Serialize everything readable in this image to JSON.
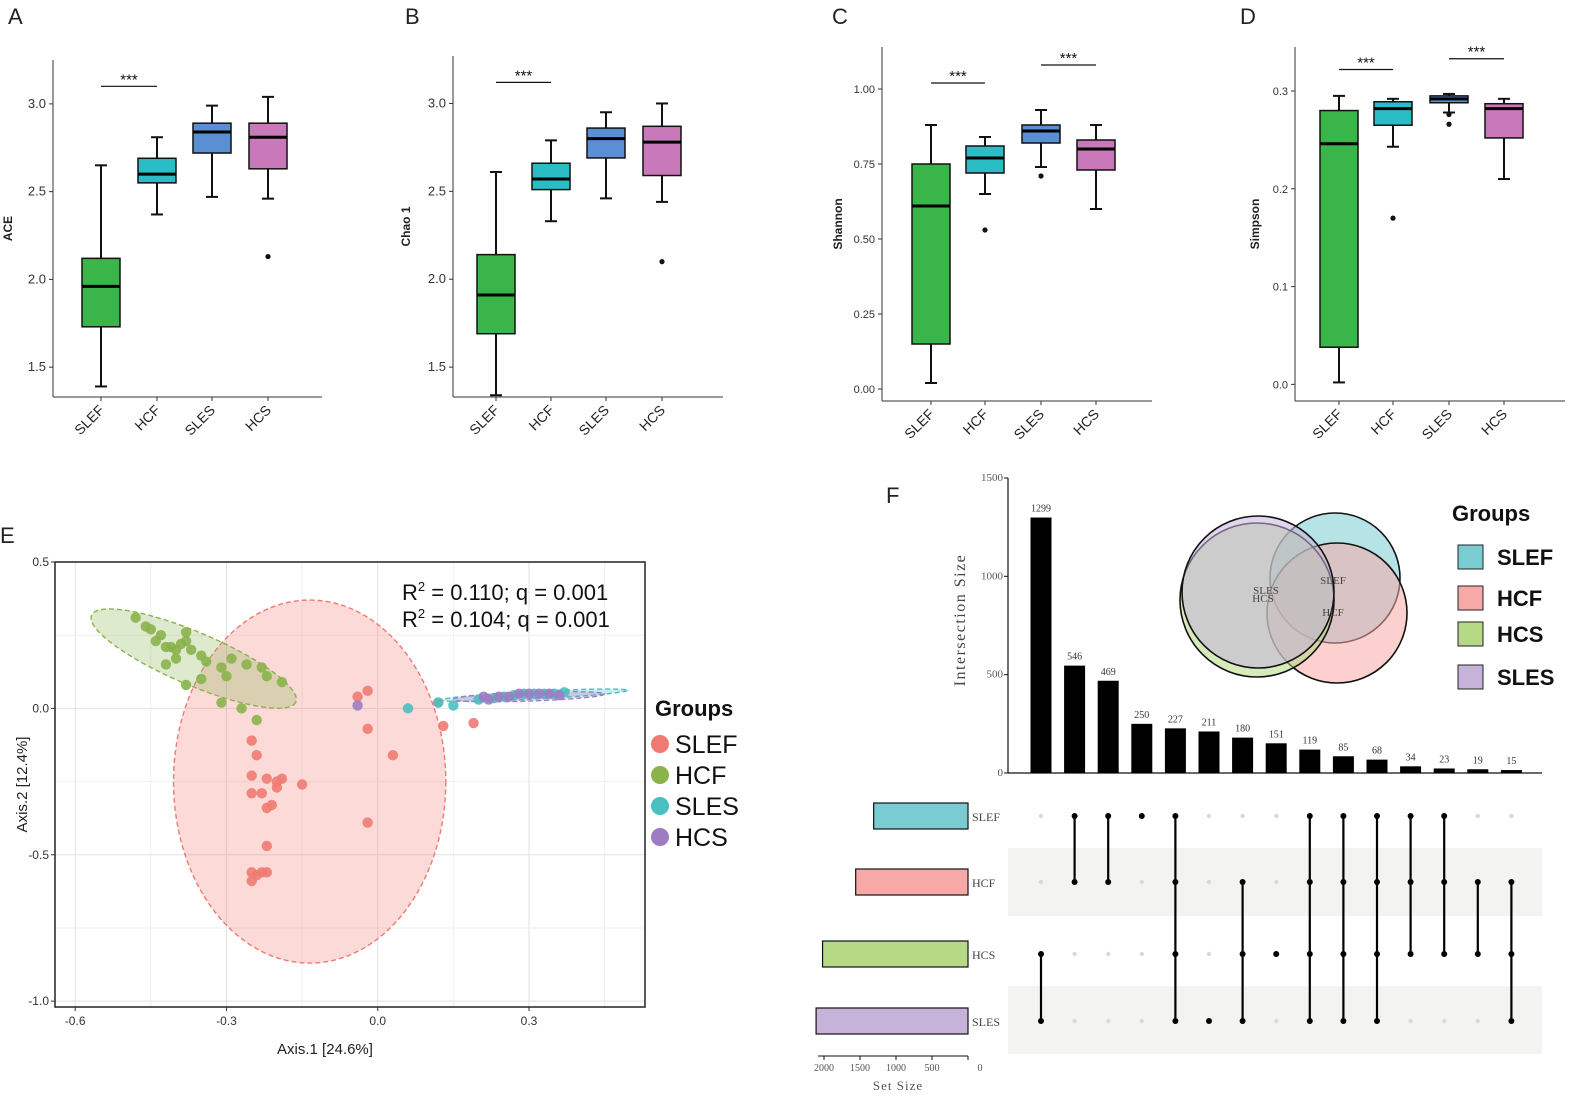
{
  "chart_data": {
    "panels": [
      {
        "type": "box",
        "label": "A",
        "ylabel": "ACE",
        "ylim": [
          1.33,
          3.25
        ],
        "yticks": [
          "1.5",
          "2.0",
          "2.5",
          "3.0"
        ],
        "categories": [
          "SLEF",
          "HCF",
          "SLES",
          "HCS"
        ],
        "boxes": [
          {
            "group": "SLEF",
            "color": "#3ab54a",
            "min": 1.39,
            "q1": 1.73,
            "median": 1.96,
            "q3": 2.12,
            "max": 2.65,
            "outliers": []
          },
          {
            "group": "HCF",
            "color": "#2bbdc6",
            "min": 2.37,
            "q1": 2.55,
            "median": 2.6,
            "q3": 2.69,
            "max": 2.81,
            "outliers": []
          },
          {
            "group": "SLES",
            "color": "#5b8fd3",
            "min": 2.47,
            "q1": 2.72,
            "median": 2.84,
            "q3": 2.89,
            "max": 2.99,
            "outliers": []
          },
          {
            "group": "HCS",
            "color": "#c978b9",
            "min": 2.46,
            "q1": 2.63,
            "median": 2.81,
            "q3": 2.89,
            "max": 3.04,
            "outliers": [
              2.13
            ]
          }
        ],
        "brackets": [
          {
            "from": "SLEF",
            "to": "HCF",
            "y": 3.1,
            "text": "***"
          }
        ]
      },
      {
        "type": "box",
        "label": "B",
        "ylabel": "Chao 1",
        "ylim": [
          1.33,
          3.27
        ],
        "yticks": [
          "1.5",
          "2.0",
          "2.5",
          "3.0"
        ],
        "categories": [
          "SLEF",
          "HCF",
          "SLES",
          "HCS"
        ],
        "boxes": [
          {
            "group": "SLEF",
            "color": "#3ab54a",
            "min": 1.34,
            "q1": 1.69,
            "median": 1.91,
            "q3": 2.14,
            "max": 2.61,
            "outliers": []
          },
          {
            "group": "HCF",
            "color": "#2bbdc6",
            "min": 2.33,
            "q1": 2.51,
            "median": 2.57,
            "q3": 2.66,
            "max": 2.79,
            "outliers": []
          },
          {
            "group": "SLES",
            "color": "#5b8fd3",
            "min": 2.46,
            "q1": 2.69,
            "median": 2.8,
            "q3": 2.86,
            "max": 2.95,
            "outliers": []
          },
          {
            "group": "HCS",
            "color": "#c978b9",
            "min": 2.44,
            "q1": 2.59,
            "median": 2.78,
            "q3": 2.87,
            "max": 3.0,
            "outliers": [
              2.1
            ]
          }
        ],
        "brackets": [
          {
            "from": "SLEF",
            "to": "HCF",
            "y": 3.12,
            "text": "***"
          }
        ]
      },
      {
        "type": "box",
        "label": "C",
        "ylabel": "Shannon",
        "ylim": [
          -0.04,
          1.14
        ],
        "yticks": [
          "0.00",
          "0.25",
          "0.50",
          "0.75",
          "1.00"
        ],
        "categories": [
          "SLEF",
          "HCF",
          "SLES",
          "HCS"
        ],
        "boxes": [
          {
            "group": "SLEF",
            "color": "#3ab54a",
            "min": 0.02,
            "q1": 0.15,
            "median": 0.61,
            "q3": 0.75,
            "max": 0.88,
            "outliers": []
          },
          {
            "group": "HCF",
            "color": "#2bbdc6",
            "min": 0.65,
            "q1": 0.72,
            "median": 0.77,
            "q3": 0.81,
            "max": 0.84,
            "outliers": [
              0.53
            ]
          },
          {
            "group": "SLES",
            "color": "#5b8fd3",
            "min": 0.74,
            "q1": 0.82,
            "median": 0.86,
            "q3": 0.88,
            "max": 0.93,
            "outliers": [
              0.71
            ]
          },
          {
            "group": "HCS",
            "color": "#c978b9",
            "min": 0.6,
            "q1": 0.73,
            "median": 0.8,
            "q3": 0.83,
            "max": 0.88,
            "outliers": []
          }
        ],
        "brackets": [
          {
            "from": "SLEF",
            "to": "HCF",
            "y": 1.02,
            "text": "***"
          },
          {
            "from": "SLES",
            "to": "HCS",
            "y": 1.08,
            "text": "***"
          }
        ]
      },
      {
        "type": "box",
        "label": "D",
        "ylabel": "Simpson",
        "ylim": [
          -0.017,
          0.345
        ],
        "yticks": [
          "0.0",
          "0.1",
          "0.2",
          "0.3"
        ],
        "categories": [
          "SLEF",
          "HCF",
          "SLES",
          "HCS"
        ],
        "boxes": [
          {
            "group": "SLEF",
            "color": "#3ab54a",
            "min": 0.002,
            "q1": 0.038,
            "median": 0.246,
            "q3": 0.28,
            "max": 0.295,
            "outliers": []
          },
          {
            "group": "HCF",
            "color": "#2bbdc6",
            "min": 0.243,
            "q1": 0.265,
            "median": 0.282,
            "q3": 0.289,
            "max": 0.292,
            "outliers": [
              0.17
            ]
          },
          {
            "group": "SLES",
            "color": "#5b8fd3",
            "min": 0.278,
            "q1": 0.288,
            "median": 0.292,
            "q3": 0.295,
            "max": 0.297,
            "outliers": [
              0.276,
              0.266
            ]
          },
          {
            "group": "HCS",
            "color": "#c978b9",
            "min": 0.21,
            "q1": 0.252,
            "median": 0.282,
            "q3": 0.287,
            "max": 0.292,
            "outliers": []
          }
        ],
        "brackets": [
          {
            "from": "SLEF",
            "to": "HCF",
            "y": 0.322,
            "text": "***"
          },
          {
            "from": "SLES",
            "to": "HCS",
            "y": 0.333,
            "text": "***"
          }
        ]
      },
      {
        "type": "scatter",
        "label": "E",
        "xlabel": "Axis.1   [24.6%]",
        "ylabel": "Axis.2   [12.4%]",
        "xlim": [
          -0.64,
          0.53
        ],
        "ylim": [
          -1.02,
          0.5
        ],
        "xticks": [
          -0.6,
          -0.3,
          0.0,
          0.3
        ],
        "xtick_labels": [
          "-0.6",
          "-0.3",
          "0.0",
          "0.3"
        ],
        "yticks": [
          0.5,
          0.0,
          -0.5,
          -1.0
        ],
        "ytick_labels": [
          "0.5",
          "0.0",
          "-0.5",
          "-1.0"
        ],
        "annotations": [
          {
            "pre": "R",
            "sup": "2",
            "post": " = 0.110; q = 0.001"
          },
          {
            "pre": "R",
            "sup": "2",
            "post": " = 0.104; q = 0.001"
          }
        ],
        "legend_title": "Groups",
        "series": [
          {
            "name": "SLEF",
            "color": "#f07a72",
            "ellipse": {
              "cx": -0.135,
              "cy": -0.25,
              "rx": 0.27,
              "ry": 0.62,
              "angle": 0
            },
            "points": [
              [
                -0.02,
                0.06
              ],
              [
                -0.04,
                0.04
              ],
              [
                -0.02,
                -0.07
              ],
              [
                0.12,
                0.02
              ],
              [
                0.13,
                -0.06
              ],
              [
                0.19,
                -0.05
              ],
              [
                0.03,
                -0.16
              ],
              [
                -0.25,
                -0.11
              ],
              [
                -0.24,
                -0.16
              ],
              [
                -0.25,
                -0.23
              ],
              [
                -0.22,
                -0.24
              ],
              [
                -0.2,
                -0.25
              ],
              [
                -0.19,
                -0.24
              ],
              [
                -0.15,
                -0.26
              ],
              [
                -0.2,
                -0.27
              ],
              [
                -0.25,
                -0.29
              ],
              [
                -0.23,
                -0.29
              ],
              [
                -0.22,
                -0.34
              ],
              [
                -0.21,
                -0.33
              ],
              [
                -0.22,
                -0.47
              ],
              [
                -0.25,
                -0.56
              ],
              [
                -0.24,
                -0.57
              ],
              [
                -0.23,
                -0.56
              ],
              [
                -0.22,
                -0.56
              ],
              [
                -0.25,
                -0.59
              ],
              [
                -0.02,
                -0.39
              ]
            ]
          },
          {
            "name": "HCF",
            "color": "#8ab34c",
            "ellipse": {
              "cx": -0.365,
              "cy": 0.17,
              "rx": 0.22,
              "ry": 0.09,
              "angle": 23
            },
            "points": [
              [
                -0.48,
                0.31
              ],
              [
                -0.46,
                0.28
              ],
              [
                -0.45,
                0.27
              ],
              [
                -0.43,
                0.25
              ],
              [
                -0.44,
                0.23
              ],
              [
                -0.42,
                0.21
              ],
              [
                -0.41,
                0.21
              ],
              [
                -0.4,
                0.2
              ],
              [
                -0.39,
                0.22
              ],
              [
                -0.38,
                0.23
              ],
              [
                -0.37,
                0.2
              ],
              [
                -0.4,
                0.17
              ],
              [
                -0.35,
                0.18
              ],
              [
                -0.34,
                0.16
              ],
              [
                -0.31,
                0.14
              ],
              [
                -0.29,
                0.17
              ],
              [
                -0.26,
                0.15
              ],
              [
                -0.23,
                0.14
              ],
              [
                -0.3,
                0.11
              ],
              [
                -0.22,
                0.11
              ],
              [
                -0.19,
                0.09
              ],
              [
                -0.35,
                0.1
              ],
              [
                -0.38,
                0.08
              ],
              [
                -0.31,
                0.02
              ],
              [
                -0.27,
                0.0
              ],
              [
                -0.24,
                -0.04
              ],
              [
                -0.42,
                0.15
              ],
              [
                -0.38,
                0.26
              ]
            ]
          },
          {
            "name": "SLES",
            "color": "#4bbfbf",
            "ellipse": {
              "cx": 0.31,
              "cy": 0.045,
              "rx": 0.185,
              "ry": 0.013,
              "angle": -3
            },
            "points": [
              [
                0.06,
                0.0
              ],
              [
                0.15,
                0.01
              ],
              [
                0.2,
                0.03
              ],
              [
                0.23,
                0.035
              ],
              [
                0.25,
                0.04
              ],
              [
                0.27,
                0.045
              ],
              [
                0.29,
                0.05
              ],
              [
                0.31,
                0.05
              ],
              [
                0.33,
                0.05
              ],
              [
                0.35,
                0.05
              ],
              [
                0.37,
                0.055
              ],
              [
                0.12,
                0.02
              ]
            ]
          },
          {
            "name": "HCS",
            "color": "#9c7dc3",
            "ellipse": {
              "cx": 0.3,
              "cy": 0.04,
              "rx": 0.15,
              "ry": 0.015,
              "angle": -2
            },
            "points": [
              [
                -0.04,
                0.01
              ],
              [
                0.22,
                0.03
              ],
              [
                0.24,
                0.04
              ],
              [
                0.26,
                0.04
              ],
              [
                0.28,
                0.05
              ],
              [
                0.3,
                0.05
              ],
              [
                0.32,
                0.05
              ],
              [
                0.34,
                0.05
              ],
              [
                0.36,
                0.045
              ],
              [
                0.21,
                0.04
              ]
            ]
          }
        ]
      },
      {
        "type": "upset",
        "label": "F",
        "ylabel": "Intersection Size",
        "xlabel": "Set Size",
        "ylim": [
          0,
          1500
        ],
        "yticks": [
          0,
          500,
          1000,
          1500
        ],
        "ytick_labels": [
          "0",
          "500",
          "1000",
          "1500"
        ],
        "setsize_ticks": [
          2000,
          1500,
          1000,
          500,
          0
        ],
        "setsize_tick_labels": [
          "2000",
          "1500",
          "1000",
          "500",
          "0"
        ],
        "sets": [
          {
            "name": "SLEF",
            "color": "#79ccd1",
            "size": 1310
          },
          {
            "name": "HCF",
            "color": "#f7a9a8",
            "size": 1560
          },
          {
            "name": "HCS",
            "color": "#b5d985",
            "size": 2020
          },
          {
            "name": "SLES",
            "color": "#c7b3da",
            "size": 2110
          }
        ],
        "intersections": [
          {
            "value": 1299,
            "sets": [
              "SLES",
              "HCS"
            ]
          },
          {
            "value": 546,
            "sets": [
              "SLEF",
              "HCF"
            ]
          },
          {
            "value": 469,
            "sets": [
              "SLEF",
              "HCF"
            ]
          },
          {
            "value": 250,
            "sets": [
              "SLEF"
            ]
          },
          {
            "value": 227,
            "sets": [
              "SLEF",
              "HCF",
              "HCS",
              "SLES"
            ]
          },
          {
            "value": 211,
            "sets": [
              "SLES"
            ]
          },
          {
            "value": 180,
            "sets": [
              "HCF",
              "HCS",
              "SLES"
            ]
          },
          {
            "value": 151,
            "sets": [
              "HCS"
            ]
          },
          {
            "value": 119,
            "sets": [
              "SLEF",
              "HCF",
              "HCS",
              "SLES"
            ]
          },
          {
            "value": 85,
            "sets": [
              "SLEF",
              "HCF",
              "HCS",
              "SLES"
            ]
          },
          {
            "value": 68,
            "sets": [
              "SLEF",
              "HCF",
              "HCS",
              "SLES"
            ]
          },
          {
            "value": 34,
            "sets": [
              "SLEF",
              "HCF",
              "HCS"
            ]
          },
          {
            "value": 23,
            "sets": [
              "SLEF",
              "HCF",
              "HCS"
            ]
          },
          {
            "value": 19,
            "sets": [
              "HCF",
              "HCS"
            ]
          },
          {
            "value": 15,
            "sets": [
              "HCF",
              "HCS",
              "SLES"
            ]
          }
        ],
        "venn": {
          "circles": [
            {
              "set": "SLEF",
              "color": "#79ccd1"
            },
            {
              "set": "HCF",
              "color": "#f7a9a8"
            },
            {
              "set": "HCS",
              "color": "#b5d985"
            },
            {
              "set": "SLES",
              "color": "#c7b3da"
            }
          ],
          "labels": [
            "SLES",
            "HCS",
            "SLEF",
            "HCF"
          ]
        },
        "legend_title": "Groups",
        "legend": [
          {
            "name": "SLEF",
            "color": "#79ccd1"
          },
          {
            "name": "HCF",
            "color": "#f7a9a8"
          },
          {
            "name": "HCS",
            "color": "#b5d985"
          },
          {
            "name": "SLES",
            "color": "#c7b3da"
          }
        ]
      }
    ]
  }
}
